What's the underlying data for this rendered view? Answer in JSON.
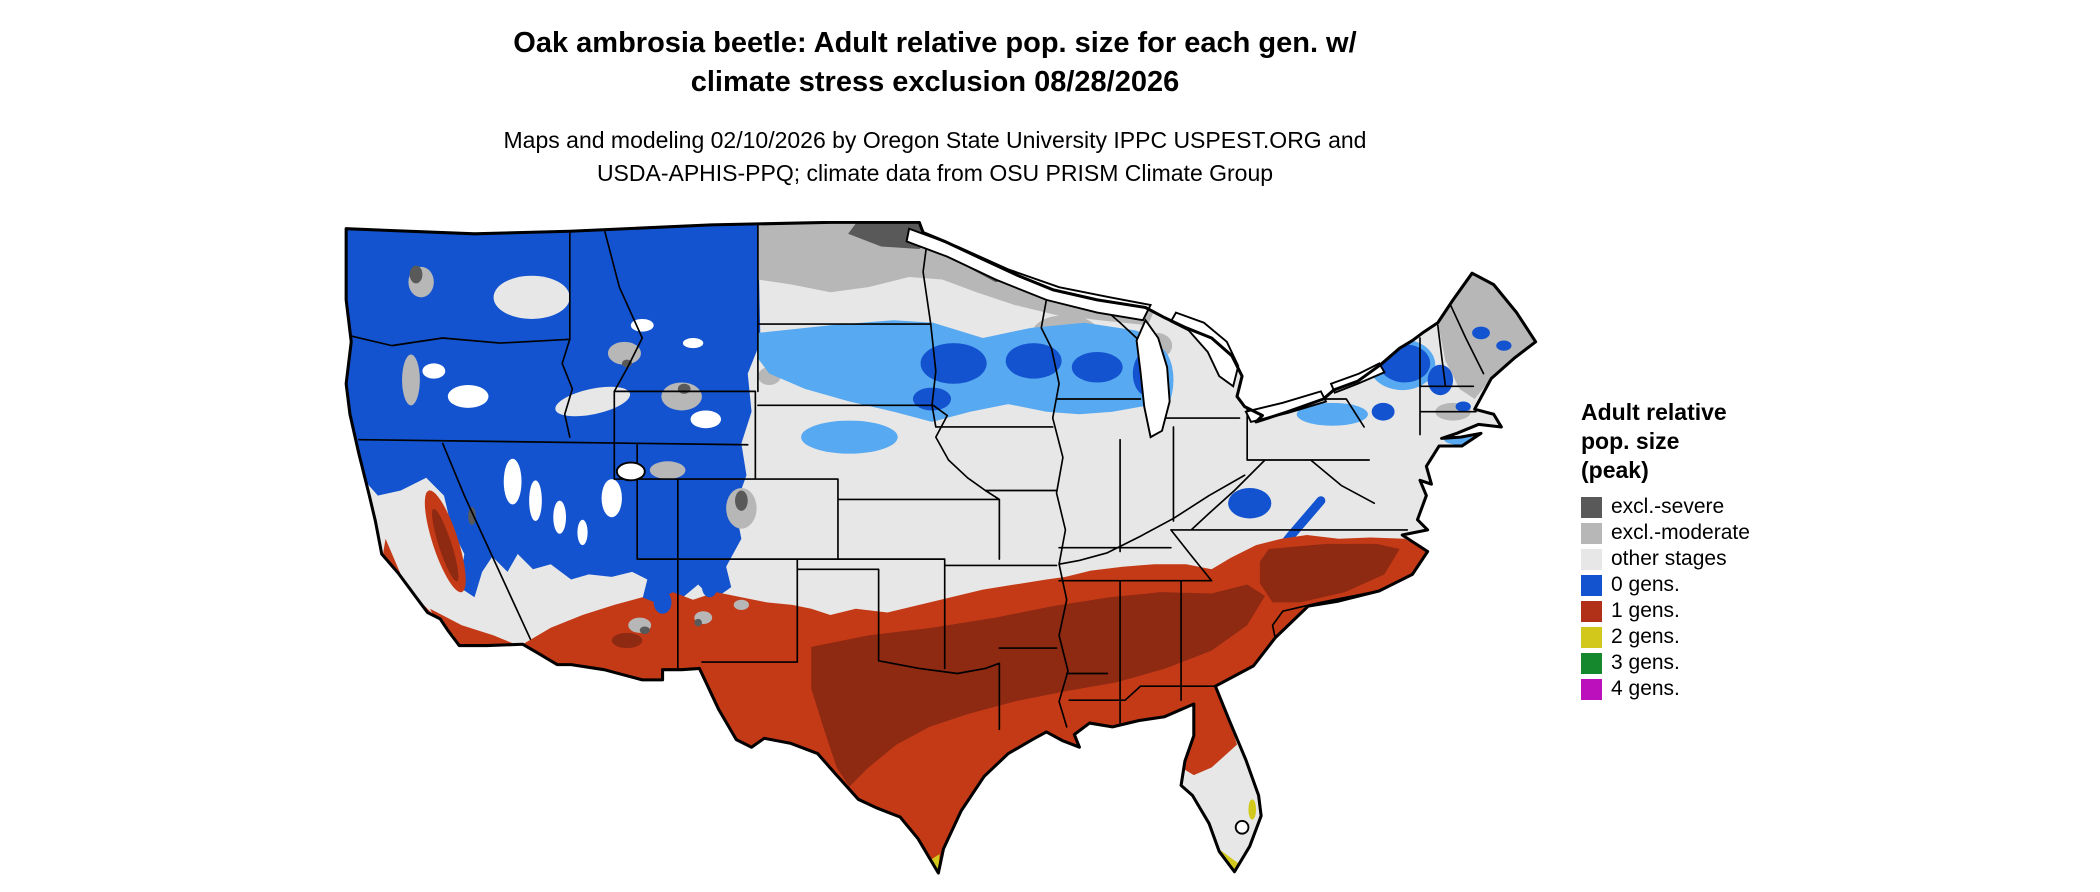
{
  "header": {
    "title_line1": "Oak ambrosia beetle: Adult relative pop. size for each gen. w/",
    "title_line2": "climate stress exclusion 08/28/2026",
    "subtitle_line1": "Maps and modeling 02/10/2026 by Oregon State University IPPC USPEST.ORG and",
    "subtitle_line2": "USDA-APHIS-PPQ; climate data from OSU PRISM Climate Group"
  },
  "legend": {
    "title_line1": "Adult relative",
    "title_line2": "pop. size",
    "title_line3": "(peak)",
    "entries": [
      {
        "key": "severe",
        "label": "excl.-severe",
        "color": "#595959"
      },
      {
        "key": "moderate",
        "label": "excl.-moderate",
        "color": "#b7b7b7"
      },
      {
        "key": "other",
        "label": "other stages",
        "color": "#e7e7e7"
      },
      {
        "key": "gens0",
        "label": "0 gens.",
        "color": "#1353cf"
      },
      {
        "key": "gens1",
        "label": "1 gens.",
        "color": "#b03018"
      },
      {
        "key": "gens2",
        "label": "2 gens.",
        "color": "#d2c81c"
      },
      {
        "key": "gens3",
        "label": "3 gens.",
        "color": "#15882e"
      },
      {
        "key": "gens4",
        "label": "4 gens.",
        "color": "#bb10bb"
      }
    ]
  },
  "map": {
    "region": "Contiguous United States",
    "palette": {
      "red_band": "#c43a16",
      "red_dark": "#8e2912",
      "blue_light": "#57a9f1",
      "water": "#ffffff",
      "outline": "#000000"
    }
  }
}
